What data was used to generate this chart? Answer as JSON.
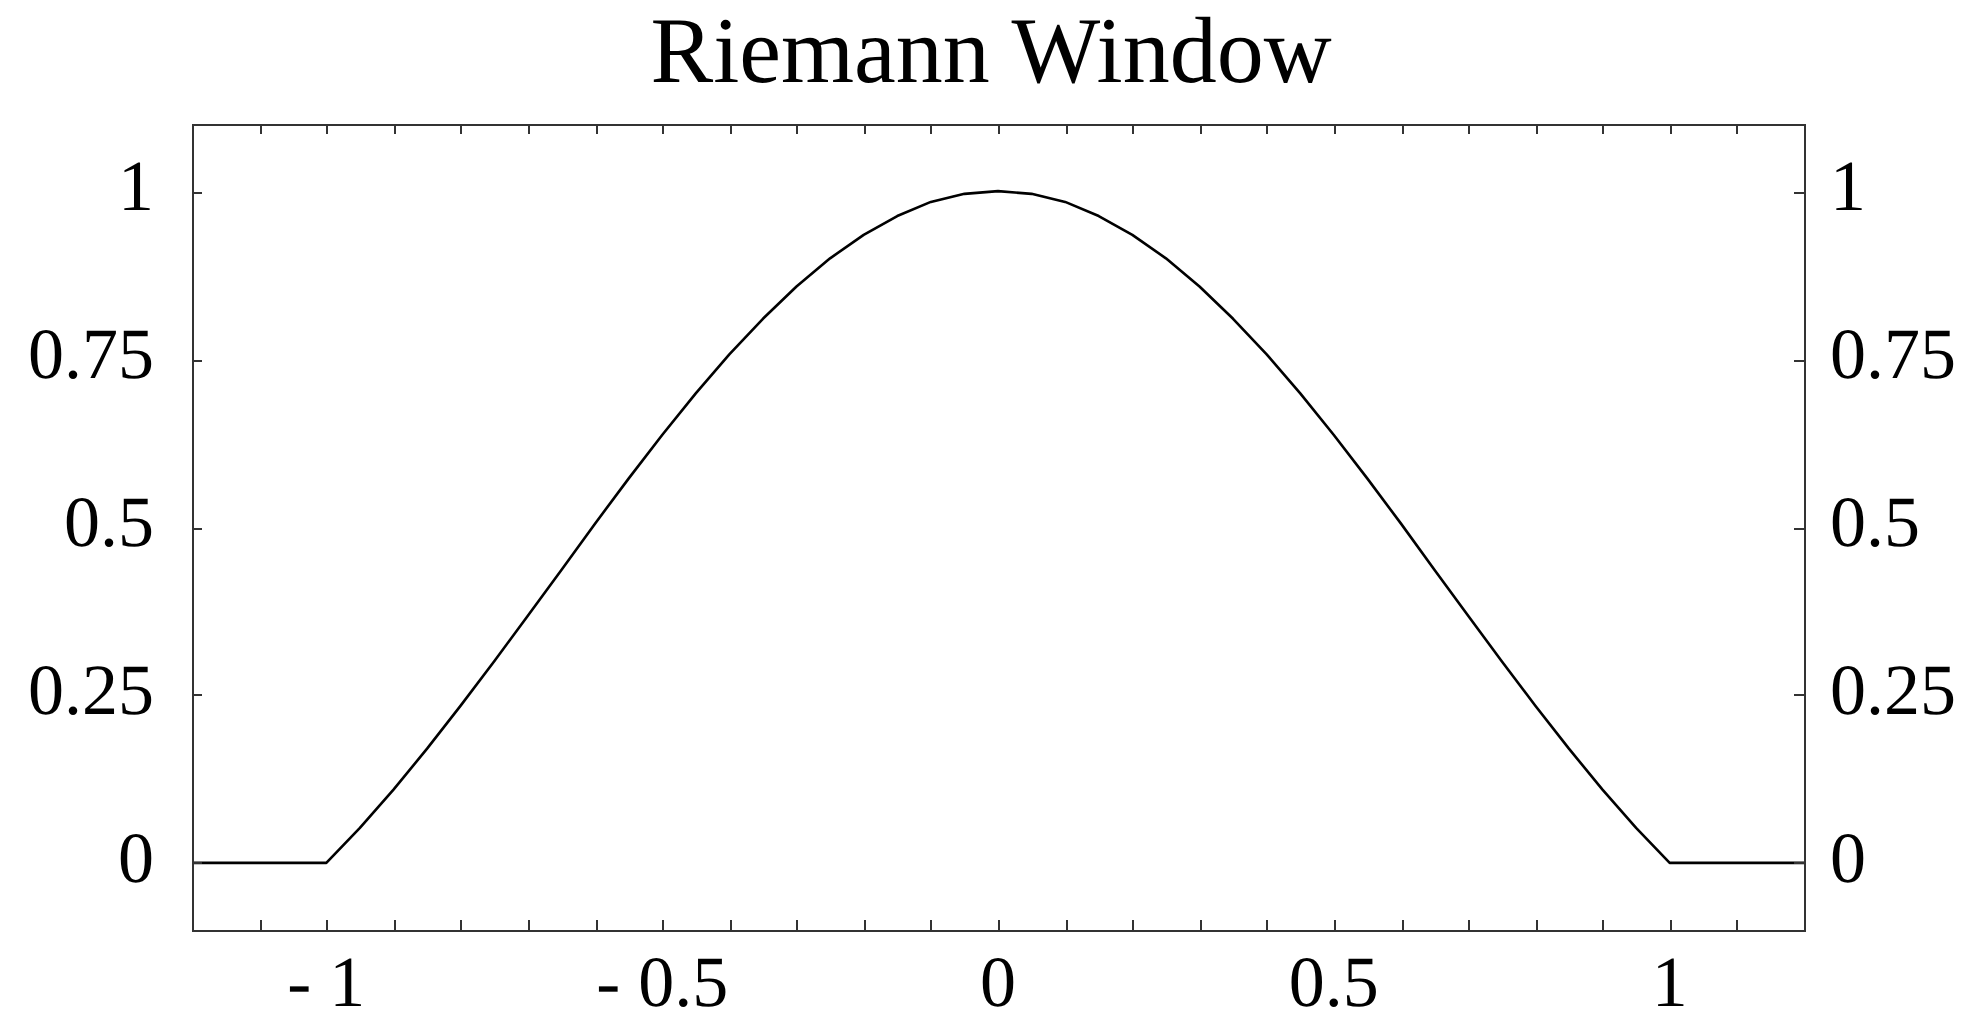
{
  "chart_data": {
    "type": "line",
    "title": "Riemann Window",
    "x": [
      -1.2,
      -1,
      -0.95,
      -0.9,
      -0.85,
      -0.8,
      -0.75,
      -0.7,
      -0.65,
      -0.6,
      -0.55,
      -0.5,
      -0.45,
      -0.4,
      -0.35,
      -0.3,
      -0.25,
      -0.2,
      -0.15,
      -0.1,
      -0.05,
      0,
      0.05,
      0.1,
      0.15,
      0.2,
      0.25,
      0.3,
      0.35,
      0.4,
      0.45,
      0.5,
      0.55,
      0.6,
      0.65,
      0.7,
      0.75,
      0.8,
      0.85,
      0.9,
      0.95,
      1,
      1.2
    ],
    "values": [
      0,
      0,
      0.052,
      0.109,
      0.17,
      0.234,
      0.3,
      0.368,
      0.436,
      0.505,
      0.572,
      0.637,
      0.699,
      0.757,
      0.81,
      0.858,
      0.9,
      0.935,
      0.963,
      0.984,
      0.996,
      1,
      0.996,
      0.984,
      0.963,
      0.935,
      0.9,
      0.858,
      0.81,
      0.757,
      0.699,
      0.637,
      0.572,
      0.505,
      0.436,
      0.368,
      0.3,
      0.234,
      0.17,
      0.109,
      0.052,
      0,
      0
    ],
    "color": "#000000",
    "marker": "none",
    "xlim": [
      -1.2,
      1.2
    ],
    "xticks": [
      {
        "value": -1.1,
        "label": null
      },
      {
        "value": -1,
        "label": "- 1"
      },
      {
        "value": -0.9,
        "label": null
      },
      {
        "value": -0.8,
        "label": null
      },
      {
        "value": -0.7,
        "label": null
      },
      {
        "value": -0.6,
        "label": null
      },
      {
        "value": -0.5,
        "label": "- 0.5"
      },
      {
        "value": -0.4,
        "label": null
      },
      {
        "value": -0.3,
        "label": null
      },
      {
        "value": -0.2,
        "label": null
      },
      {
        "value": -0.1,
        "label": null
      },
      0,
      {
        "value": 0.1,
        "label": null
      },
      {
        "value": 0.2,
        "label": null
      },
      {
        "value": 0.3,
        "label": null
      },
      {
        "value": 0.4,
        "label": null
      },
      0.5,
      {
        "value": 0.6,
        "label": null
      },
      {
        "value": 0.7,
        "label": null
      },
      {
        "value": 0.8,
        "label": null
      },
      {
        "value": 0.9,
        "label": null
      },
      1,
      {
        "value": 1.1,
        "label": null
      }
    ],
    "ylim": [
      -0.1,
      1.1
    ],
    "yticks": [
      0,
      0.25,
      0.5,
      0.75,
      1
    ],
    "y2lim": [
      -0.1,
      1.1
    ],
    "y2ticks": [
      0,
      0.25,
      0.5,
      0.75,
      1
    ]
  }
}
